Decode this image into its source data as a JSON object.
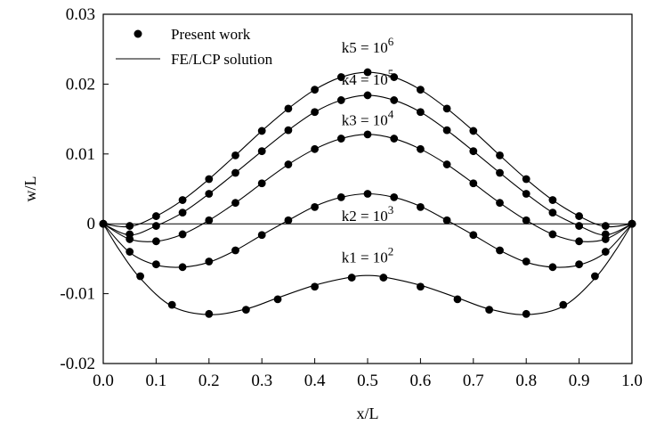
{
  "chart_data": {
    "type": "line",
    "title": "",
    "xlabel": "x/L",
    "ylabel": "w/L",
    "xlim": [
      0,
      1
    ],
    "ylim": [
      -0.02,
      0.03
    ],
    "x_ticks": [
      "0.0",
      "0.1",
      "0.2",
      "0.3",
      "0.4",
      "0.5",
      "0.6",
      "0.7",
      "0.8",
      "0.9",
      "1.0"
    ],
    "y_ticks": [
      "-0.02",
      "-0.01",
      "0",
      "0.01",
      "0.02",
      "0.03"
    ],
    "grid": false,
    "legend": {
      "placement": "top-left",
      "entries": [
        {
          "label": "Present work",
          "marker": "filled-circle"
        },
        {
          "label": "FE/LCP solution",
          "marker": "line"
        }
      ]
    },
    "colors": {
      "marks": "#000000",
      "background": "#ffffff"
    },
    "reference_line_y": 0,
    "series": [
      {
        "label": {
          "base": "k5 = 10",
          "exp": "6"
        },
        "label_anchor": [
          0.5,
          0.0245
        ],
        "curve_x": [
          0,
          0.05,
          0.1,
          0.15,
          0.2,
          0.25,
          0.3,
          0.35,
          0.4,
          0.45,
          0.5,
          0.55,
          0.6,
          0.65,
          0.7,
          0.75,
          0.8,
          0.85,
          0.9,
          0.95,
          1.0
        ],
        "curve_y": [
          0,
          -0.0004,
          0.0011,
          0.0034,
          0.0064,
          0.0098,
          0.0133,
          0.0165,
          0.0192,
          0.021,
          0.0217,
          0.021,
          0.0192,
          0.0165,
          0.0133,
          0.0098,
          0.0064,
          0.0034,
          0.0011,
          -0.0004,
          0
        ],
        "points_x": [
          0,
          0.05,
          0.1,
          0.15,
          0.2,
          0.25,
          0.3,
          0.35,
          0.4,
          0.45,
          0.5,
          0.55,
          0.6,
          0.65,
          0.7,
          0.75,
          0.8,
          0.85,
          0.9,
          0.95,
          1.0
        ],
        "points_y": [
          0,
          -0.0003,
          0.0011,
          0.0034,
          0.0064,
          0.0098,
          0.0133,
          0.0165,
          0.0192,
          0.021,
          0.0217,
          0.021,
          0.0192,
          0.0165,
          0.0133,
          0.0098,
          0.0064,
          0.0034,
          0.0011,
          -0.0003,
          0
        ]
      },
      {
        "label": {
          "base": "k4 = 10",
          "exp": "5"
        },
        "label_anchor": [
          0.5,
          0.0199
        ],
        "curve_x": [
          0,
          0.05,
          0.1,
          0.15,
          0.2,
          0.25,
          0.3,
          0.35,
          0.4,
          0.45,
          0.5,
          0.55,
          0.6,
          0.65,
          0.7,
          0.75,
          0.8,
          0.85,
          0.9,
          0.95,
          1.0
        ],
        "curve_y": [
          0,
          -0.0016,
          -0.0003,
          0.0016,
          0.0043,
          0.0073,
          0.0104,
          0.0134,
          0.016,
          0.0177,
          0.0184,
          0.0177,
          0.016,
          0.0134,
          0.0104,
          0.0073,
          0.0043,
          0.0016,
          -0.0003,
          -0.0016,
          0
        ],
        "points_x": [
          0,
          0.05,
          0.1,
          0.15,
          0.2,
          0.25,
          0.3,
          0.35,
          0.4,
          0.45,
          0.5,
          0.55,
          0.6,
          0.65,
          0.7,
          0.75,
          0.8,
          0.85,
          0.9,
          0.95,
          1.0
        ],
        "points_y": [
          0,
          -0.0015,
          -0.0003,
          0.0016,
          0.0043,
          0.0073,
          0.0104,
          0.0134,
          0.016,
          0.0177,
          0.0184,
          0.0177,
          0.016,
          0.0134,
          0.0104,
          0.0073,
          0.0043,
          0.0016,
          -0.0003,
          -0.0015,
          0
        ]
      },
      {
        "label": {
          "base": "k3 = 10",
          "exp": "4"
        },
        "label_anchor": [
          0.5,
          0.0141
        ],
        "curve_x": [
          0,
          0.05,
          0.1,
          0.15,
          0.2,
          0.25,
          0.3,
          0.35,
          0.4,
          0.45,
          0.5,
          0.55,
          0.6,
          0.65,
          0.7,
          0.75,
          0.8,
          0.85,
          0.9,
          0.95,
          1.0
        ],
        "curve_y": [
          0,
          -0.0022,
          -0.0025,
          -0.0015,
          0.0005,
          0.003,
          0.0058,
          0.0085,
          0.0107,
          0.0122,
          0.0128,
          0.0122,
          0.0107,
          0.0085,
          0.0058,
          0.003,
          0.0005,
          -0.0015,
          -0.0025,
          -0.0022,
          0
        ],
        "points_x": [
          0,
          0.05,
          0.1,
          0.15,
          0.2,
          0.25,
          0.3,
          0.35,
          0.4,
          0.45,
          0.5,
          0.55,
          0.6,
          0.65,
          0.7,
          0.75,
          0.8,
          0.85,
          0.9,
          0.95,
          1.0
        ],
        "points_y": [
          0,
          -0.0022,
          -0.0025,
          -0.0015,
          0.0005,
          0.003,
          0.0058,
          0.0085,
          0.0107,
          0.0122,
          0.0128,
          0.0122,
          0.0107,
          0.0085,
          0.0058,
          0.003,
          0.0005,
          -0.0015,
          -0.0025,
          -0.0022,
          0
        ]
      },
      {
        "label": {
          "base": "k2 = 10",
          "exp": "3"
        },
        "label_anchor": [
          0.5,
          0.0004
        ],
        "curve_x": [
          0,
          0.05,
          0.1,
          0.15,
          0.2,
          0.25,
          0.3,
          0.35,
          0.4,
          0.45,
          0.5,
          0.55,
          0.6,
          0.65,
          0.7,
          0.75,
          0.8,
          0.85,
          0.9,
          0.95,
          1.0
        ],
        "curve_y": [
          0,
          -0.0041,
          -0.0059,
          -0.0062,
          -0.0055,
          -0.0038,
          -0.0016,
          0.0005,
          0.0025,
          0.0038,
          0.0043,
          0.0038,
          0.0025,
          0.0005,
          -0.0016,
          -0.0038,
          -0.0055,
          -0.0062,
          -0.0059,
          -0.0041,
          0
        ],
        "points_x": [
          0,
          0.05,
          0.1,
          0.15,
          0.2,
          0.25,
          0.3,
          0.35,
          0.4,
          0.45,
          0.5,
          0.55,
          0.6,
          0.65,
          0.7,
          0.75,
          0.8,
          0.85,
          0.9,
          0.95,
          1.0
        ],
        "points_y": [
          0,
          -0.004,
          -0.0058,
          -0.0062,
          -0.0054,
          -0.0038,
          -0.0016,
          0.0005,
          0.0024,
          0.0038,
          0.0043,
          0.0038,
          0.0024,
          0.0005,
          -0.0016,
          -0.0038,
          -0.0054,
          -0.0062,
          -0.0058,
          -0.004,
          0
        ]
      },
      {
        "label": {
          "base": "k1 = 10",
          "exp": "2"
        },
        "label_anchor": [
          0.5,
          -0.0055
        ],
        "curve_x": [
          0,
          0.03,
          0.07,
          0.13,
          0.2,
          0.27,
          0.33,
          0.4,
          0.47,
          0.5,
          0.53,
          0.6,
          0.67,
          0.73,
          0.8,
          0.87,
          0.93,
          0.97,
          1.0
        ],
        "curve_y": [
          0,
          -0.0037,
          -0.0078,
          -0.0118,
          -0.013,
          -0.0122,
          -0.0106,
          -0.0088,
          -0.0076,
          -0.0074,
          -0.0076,
          -0.0088,
          -0.0106,
          -0.0122,
          -0.013,
          -0.0118,
          -0.0078,
          -0.0037,
          0
        ],
        "points_x": [
          0,
          0.07,
          0.13,
          0.2,
          0.27,
          0.33,
          0.4,
          0.47,
          0.53,
          0.6,
          0.67,
          0.73,
          0.8,
          0.87,
          0.93,
          1.0
        ],
        "points_y": [
          0,
          -0.0075,
          -0.0116,
          -0.0129,
          -0.0123,
          -0.0108,
          -0.009,
          -0.0077,
          -0.0077,
          -0.009,
          -0.0108,
          -0.0123,
          -0.0129,
          -0.0116,
          -0.0075,
          0
        ]
      }
    ]
  }
}
